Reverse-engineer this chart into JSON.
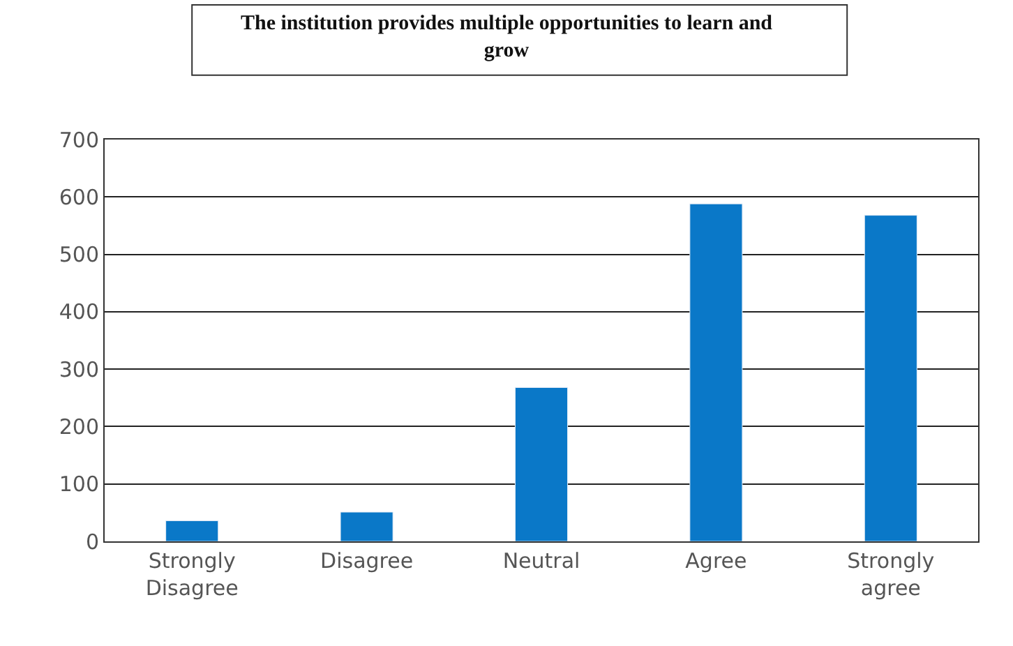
{
  "chart_data": {
    "type": "bar",
    "title": "The institution provides multiple opportunities to learn and grow",
    "categories": [
      "Strongly Disagree",
      "Disagree",
      "Neutral",
      "Agree",
      "Strongly agree"
    ],
    "values": [
      36,
      51,
      268,
      588,
      568
    ],
    "color": "#0a78c8",
    "ylim": [
      0,
      700
    ],
    "yticks": [
      0,
      100,
      200,
      300,
      400,
      500,
      600,
      700
    ],
    "grid": "y"
  }
}
